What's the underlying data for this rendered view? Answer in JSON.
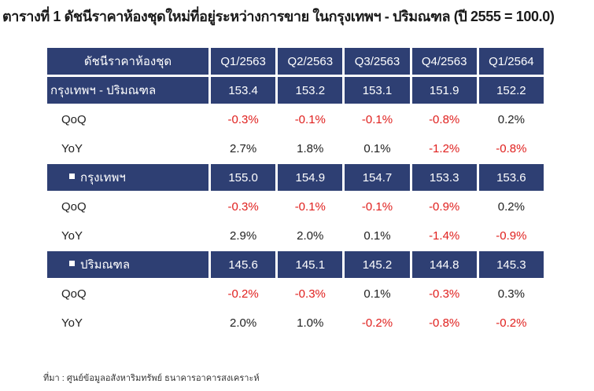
{
  "title": "ตารางที่ 1 ดัชนีราคาห้องชุดใหม่ที่อยู่ระหว่างการขาย ในกรุงเทพฯ - ปริมณฑล (ปี 2555 = 100.0)",
  "table": {
    "header_label": "ดัชนีราคาห้องชุด",
    "columns": [
      "Q1/2563",
      "Q2/2563",
      "Q3/2563",
      "Q4/2563",
      "Q1/2564"
    ],
    "rows": [
      {
        "label": "กรุงเทพฯ - ปริมณฑล",
        "type": "main",
        "values": [
          "153.4",
          "153.2",
          "153.1",
          "151.9",
          "152.2"
        ]
      },
      {
        "label": "QoQ",
        "type": "change",
        "values": [
          "-0.3%",
          "-0.1%",
          "-0.1%",
          "-0.8%",
          "0.2%"
        ]
      },
      {
        "label": "YoY",
        "type": "change",
        "values": [
          "2.7%",
          "1.8%",
          "0.1%",
          "-1.2%",
          "-0.8%"
        ]
      },
      {
        "label": "กรุงเทพฯ",
        "type": "sub",
        "values": [
          "155.0",
          "154.9",
          "154.7",
          "153.3",
          "153.6"
        ]
      },
      {
        "label": "QoQ",
        "type": "change",
        "values": [
          "-0.3%",
          "-0.1%",
          "-0.1%",
          "-0.9%",
          "0.2%"
        ]
      },
      {
        "label": "YoY",
        "type": "change",
        "values": [
          "2.9%",
          "2.0%",
          "0.1%",
          "-1.4%",
          "-0.9%"
        ]
      },
      {
        "label": "ปริมณฑล",
        "type": "sub",
        "values": [
          "145.6",
          "145.1",
          "145.2",
          "144.8",
          "145.3"
        ]
      },
      {
        "label": "QoQ",
        "type": "change",
        "values": [
          "-0.2%",
          "-0.3%",
          "0.1%",
          "-0.3%",
          "0.3%"
        ]
      },
      {
        "label": "YoY",
        "type": "change",
        "values": [
          "2.0%",
          "1.0%",
          "-0.2%",
          "-0.8%",
          "-0.2%"
        ]
      }
    ]
  },
  "colors": {
    "header_bg": "#2e3f73",
    "negative": "#e0201e"
  },
  "source": "ที่มา : ศูนย์ข้อมูลอสังหาริมทรัพย์ ธนาคารอาคารสงเคราะห์"
}
